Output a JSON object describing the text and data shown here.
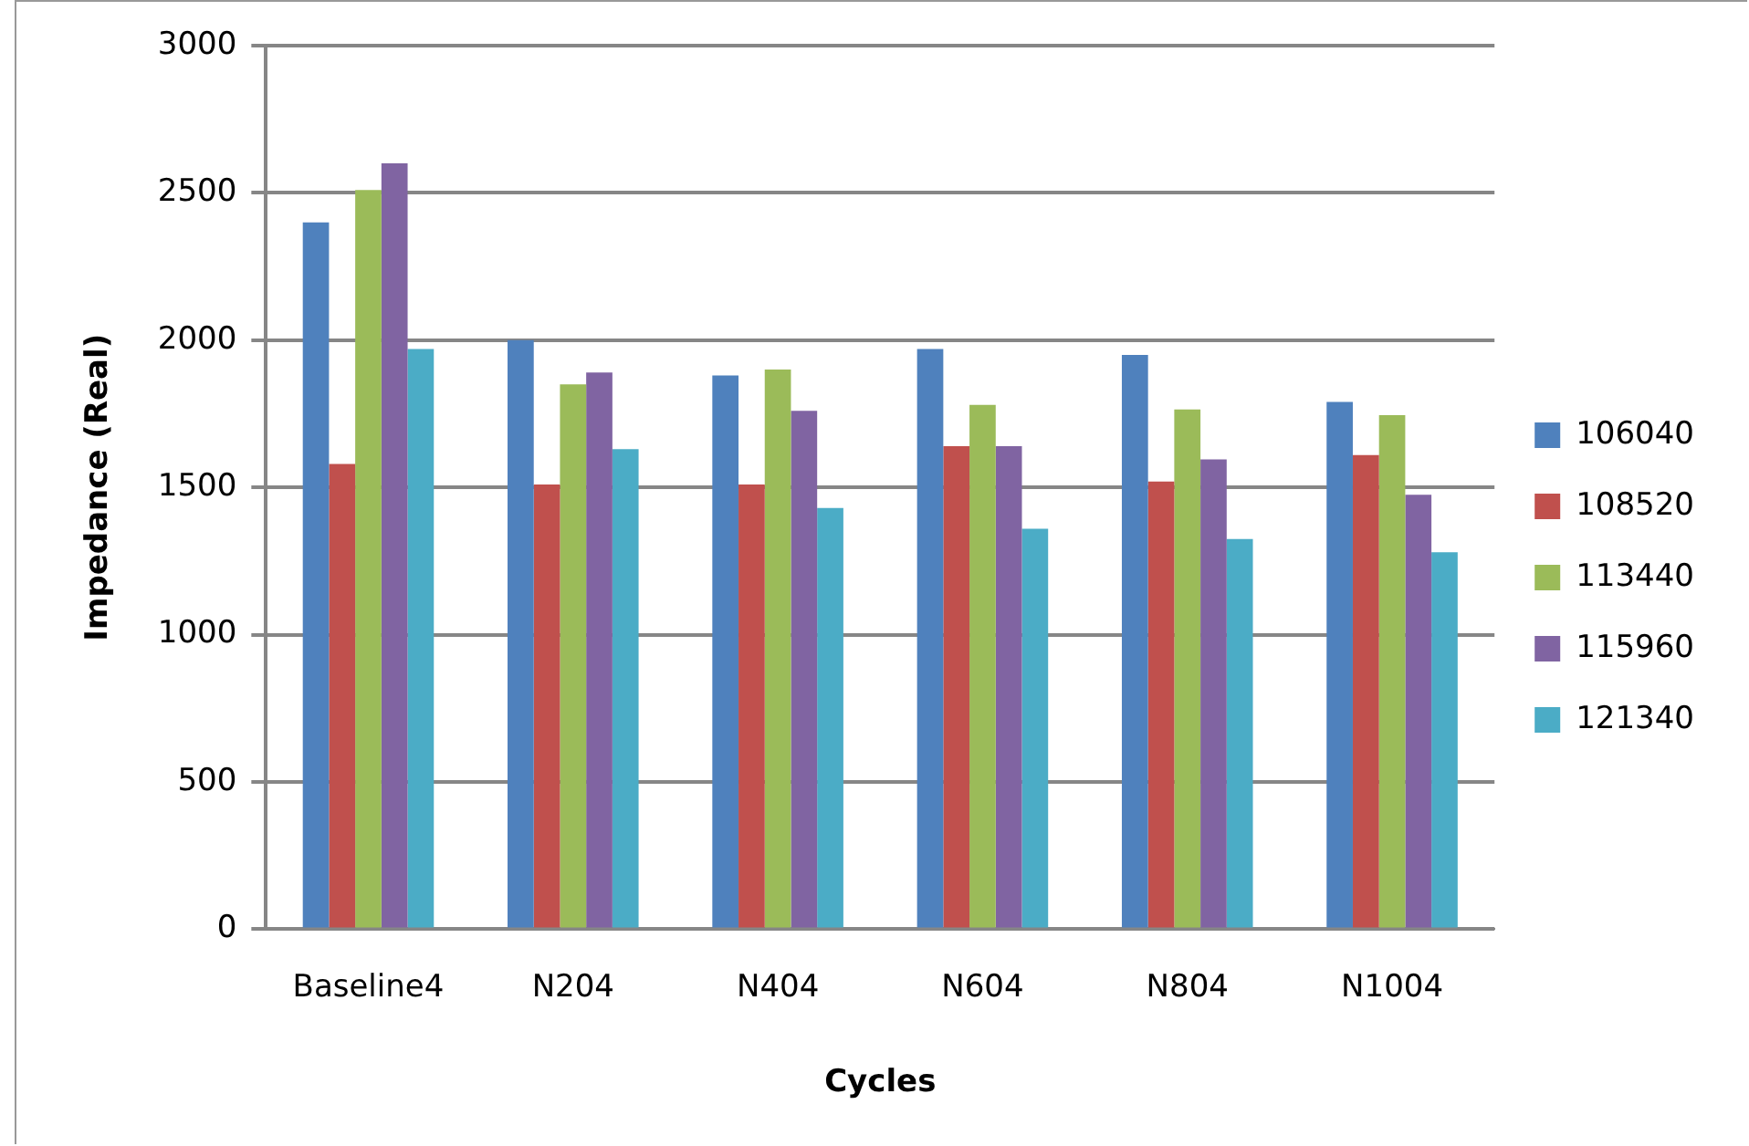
{
  "chart_data": {
    "type": "bar",
    "xlabel": "Cycles",
    "ylabel": "Impedance (Real)",
    "categories": [
      "Baseline4",
      "N204",
      "N404",
      "N604",
      "N804",
      "N1004"
    ],
    "series": [
      {
        "name": "106040",
        "color": "#4f81bd",
        "values": [
          2400,
          2000,
          1880,
          1970,
          1950,
          1790
        ]
      },
      {
        "name": "108520",
        "color": "#c0504d",
        "values": [
          1580,
          1510,
          1510,
          1640,
          1520,
          1610
        ]
      },
      {
        "name": "113440",
        "color": "#9bbb59",
        "values": [
          2510,
          1850,
          1900,
          1780,
          1765,
          1745
        ]
      },
      {
        "name": "115960",
        "color": "#8064a2",
        "values": [
          2600,
          1890,
          1760,
          1640,
          1595,
          1475
        ]
      },
      {
        "name": "121340",
        "color": "#4bacc6",
        "values": [
          1970,
          1630,
          1430,
          1360,
          1325,
          1280
        ]
      }
    ],
    "ylim": [
      0,
      3000
    ],
    "yticks": [
      0,
      500,
      1000,
      1500,
      2000,
      2500,
      3000
    ],
    "grid": "y",
    "legend": "right"
  }
}
